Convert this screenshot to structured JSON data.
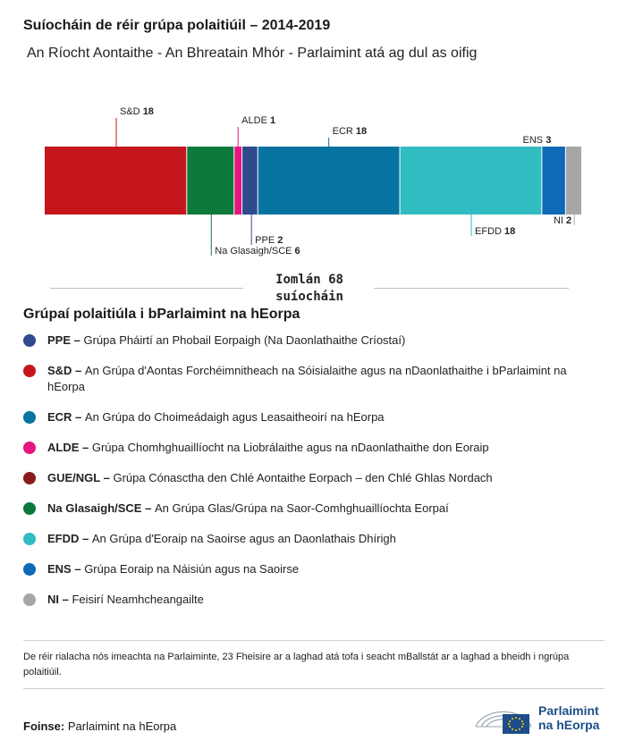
{
  "title": "Suíocháin de réir grúpa polaitiúil – 2014-2019",
  "subtitle": "An Ríocht Aontaithe - An Bhreatain Mhór - Parlaimint atá ag dul as oifig",
  "chart_data": {
    "type": "bar",
    "orientation": "horizontal-stacked",
    "total_value": 68,
    "segments": [
      {
        "name": "S&D",
        "value": 18,
        "color": "#c4161c",
        "label_pos": "above"
      },
      {
        "name": "Na Glasaigh/SCE",
        "value": 6,
        "color": "#0b7a3b",
        "label_pos": "below"
      },
      {
        "name": "ALDE",
        "value": 1,
        "color": "#e6157f",
        "label_pos": "above"
      },
      {
        "name": "PPE",
        "value": 2,
        "color": "#2f4b8e",
        "label_pos": "below"
      },
      {
        "name": "ECR",
        "value": 18,
        "color": "#0673a0",
        "label_pos": "above"
      },
      {
        "name": "EFDD",
        "value": 18,
        "color": "#31bcc1",
        "label_pos": "below"
      },
      {
        "name": "ENS",
        "value": 3,
        "color": "#0f69b7",
        "label_pos": "above"
      },
      {
        "name": "NI",
        "value": 2,
        "color": "#a6a6a6",
        "label_pos": "below"
      }
    ]
  },
  "total": {
    "line1": "Iomlán 68",
    "line2": "suíocháin"
  },
  "legend": {
    "title": "Grúpaí polaitiúla i bParlaimint na hEorpa",
    "items": [
      {
        "abbr": "PPE –",
        "text": "Grúpa Pháirtí an Phobail Eorpaigh (Na Daonlathaithe Críostaí)",
        "color": "#2f4b8e"
      },
      {
        "abbr": "S&D –",
        "text": "An Grúpa d'Aontas Forchéimnitheach na Sóisialaithe agus na nDaonlathaithe i bParlaimint na hEorpa",
        "color": "#c4161c"
      },
      {
        "abbr": "ECR –",
        "text": "An Grúpa do Choimeádaigh agus Leasaitheoirí na hEorpa",
        "color": "#0673a0"
      },
      {
        "abbr": "ALDE –",
        "text": "Grúpa Chomhghuaillíocht na Liobrálaithe agus na nDaonlathaithe don Eoraip",
        "color": "#e6157f"
      },
      {
        "abbr": "GUE/NGL –",
        "text": "Grúpa Cónasctha den Chlé Aontaithe Eorpach – den Chlé Ghlas Nordach",
        "color": "#8b1a1a"
      },
      {
        "abbr": "Na Glasaigh/SCE –",
        "text": "An Grúpa Glas/Grúpa na Saor-Comhghuaillíochta Eorpaí",
        "color": "#0b7a3b"
      },
      {
        "abbr": "EFDD –",
        "text": "An Grúpa d'Eoraip na Saoirse agus an Daonlathais Dhírigh",
        "color": "#31bcc1"
      },
      {
        "abbr": "ENS –",
        "text": "Grúpa Eoraip na Náisiún agus na Saoirse",
        "color": "#0f69b7"
      },
      {
        "abbr": "NI –",
        "text": "Feisirí Neamhcheangailte",
        "color": "#a6a6a6"
      }
    ]
  },
  "note": "De réir rialacha nós imeachta na Parlaiminte, 23 Fheisire ar a laghad atá tofa i seacht mBallstát ar a laghad a bheidh i ngrúpa polaitiúil.",
  "source": {
    "label": "Foinse:",
    "text": "Parlaimint na hEorpa"
  },
  "logo": {
    "line1": "Parlaimint",
    "line2": "na hEorpa",
    "icon": "european-parliament-hemicycle-eu-flag-icon"
  }
}
